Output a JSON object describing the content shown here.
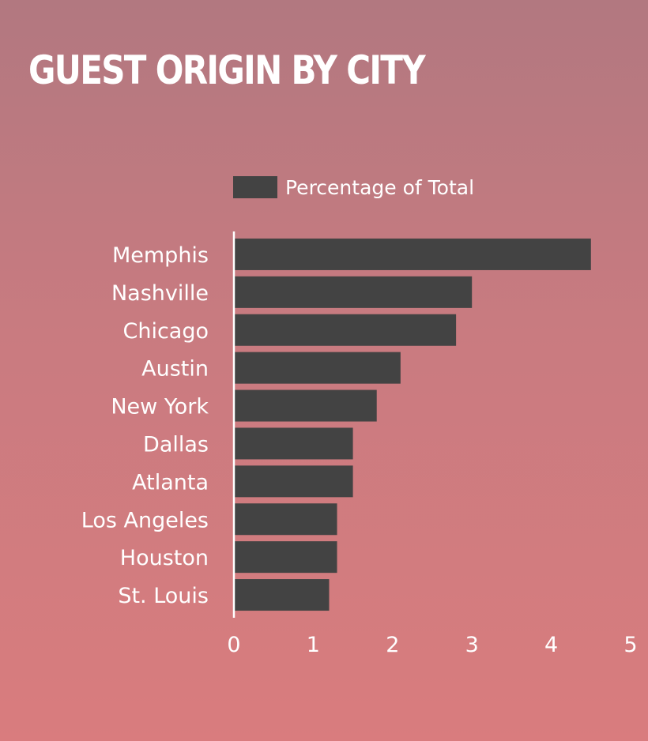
{
  "chart_data": {
    "type": "bar",
    "orientation": "horizontal",
    "title": "GUEST ORIGIN BY CITY",
    "categories": [
      "Memphis",
      "Nashville",
      "Chicago",
      "Austin",
      "New York",
      "Dallas",
      "Atlanta",
      "Los Angeles",
      "Houston",
      "St. Louis"
    ],
    "series": [
      {
        "name": "Percentage of Total",
        "values": [
          4.5,
          3.0,
          2.8,
          2.1,
          1.8,
          1.5,
          1.5,
          1.3,
          1.3,
          1.2
        ]
      }
    ],
    "xlim": [
      0,
      5
    ],
    "xticks": [
      "0",
      "1",
      "2",
      "3",
      "4",
      "5"
    ],
    "grid": false,
    "legend_position": "top",
    "bar_color": "#434343",
    "text_color": "#ffffff"
  }
}
